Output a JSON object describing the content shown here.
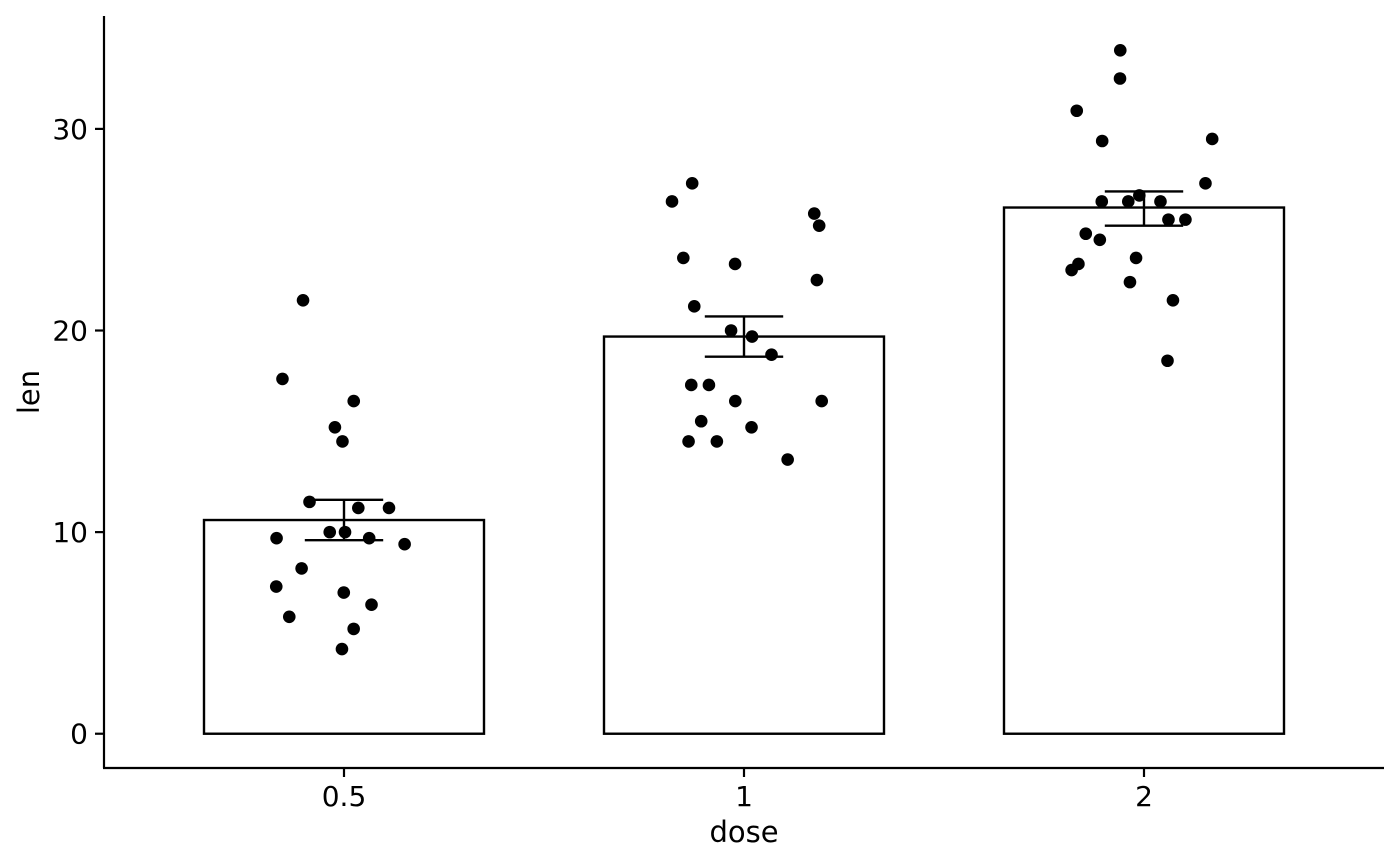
{
  "chart_data": {
    "type": "bar",
    "title": "",
    "xlabel": "dose",
    "ylabel": "len",
    "categories": [
      "0.5",
      "1",
      "2"
    ],
    "means": [
      10.6,
      19.7,
      26.1
    ],
    "error_bars": [
      {
        "lower": 9.6,
        "upper": 11.6
      },
      {
        "lower": 18.7,
        "upper": 20.7
      },
      {
        "lower": 25.2,
        "upper": 26.9
      }
    ],
    "points": [
      [
        14.5,
        16.5,
        17.6,
        21.5,
        15.2,
        10.0,
        9.7,
        9.4,
        11.2,
        10.0,
        11.5,
        11.2,
        9.7,
        7.3,
        7.0,
        8.2,
        6.4,
        5.8,
        5.2,
        4.2
      ],
      [
        27.3,
        26.4,
        25.8,
        25.2,
        23.6,
        23.3,
        22.5,
        21.2,
        20.0,
        19.7,
        18.8,
        17.3,
        17.3,
        16.5,
        16.5,
        15.5,
        15.2,
        14.5,
        14.5,
        13.6
      ],
      [
        33.9,
        32.5,
        30.9,
        29.5,
        29.4,
        27.3,
        26.7,
        26.4,
        26.4,
        26.4,
        25.5,
        25.5,
        24.8,
        24.5,
        23.6,
        23.3,
        23.0,
        22.4,
        21.5,
        18.5
      ]
    ],
    "y_ticks": [
      0,
      10,
      20,
      30
    ],
    "ylim": [
      -1.7,
      35.6
    ],
    "grid": false,
    "legend": "none",
    "colors": {
      "bar_fill": "#ffffff",
      "bar_stroke": "#000000",
      "point": "#000000",
      "error_bar": "#000000"
    }
  }
}
